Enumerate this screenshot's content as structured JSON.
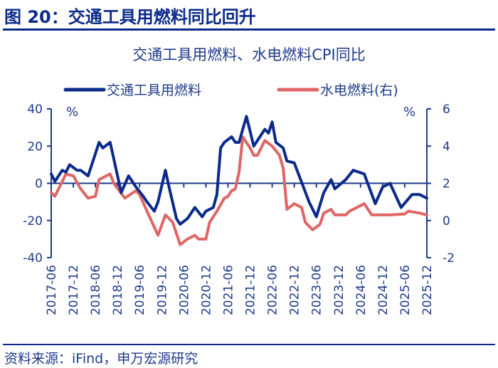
{
  "figure_title": "图 20：交通工具用燃料同比回升",
  "source": "资料来源：iFind，申万宏源研究",
  "chart_data": {
    "type": "line",
    "title": "交通工具用燃料、水电燃料CPI同比",
    "y_unit_left": "%",
    "y_unit_right": "%",
    "ylim_left": [
      -40,
      40
    ],
    "yticks_left": [
      40,
      20,
      0,
      -20,
      -40
    ],
    "ylim_right": [
      -2,
      6
    ],
    "yticks_right": [
      6,
      4,
      2,
      0,
      -2
    ],
    "xlim": [
      "2017-06",
      "2025-12"
    ],
    "xticks": [
      "2017-06",
      "2017-12",
      "2018-06",
      "2018-12",
      "2019-06",
      "2019-12",
      "2020-06",
      "2020-12",
      "2021-06",
      "2021-12",
      "2022-06",
      "2022-12",
      "2023-06",
      "2023-12",
      "2024-06",
      "2024-12",
      "2025-06",
      "2025-12"
    ],
    "grid": false,
    "legend_placement": "top",
    "series": [
      {
        "name": "交通工具用燃料",
        "axis": "left",
        "color": "#0b2a8a",
        "points": [
          [
            "2017-06",
            5
          ],
          [
            "2017-07",
            1
          ],
          [
            "2017-09",
            7
          ],
          [
            "2017-10",
            6
          ],
          [
            "2017-11",
            10
          ],
          [
            "2018-01",
            7
          ],
          [
            "2018-02",
            7
          ],
          [
            "2018-04",
            4
          ],
          [
            "2018-07",
            22
          ],
          [
            "2018-08",
            19
          ],
          [
            "2018-10",
            22
          ],
          [
            "2019-01",
            -5
          ],
          [
            "2019-03",
            4
          ],
          [
            "2019-05",
            -2
          ],
          [
            "2019-07",
            -7
          ],
          [
            "2019-08",
            -10
          ],
          [
            "2019-10",
            -15
          ],
          [
            "2019-11",
            -10
          ],
          [
            "2020-01",
            7
          ],
          [
            "2020-02",
            -2
          ],
          [
            "2020-04",
            -19
          ],
          [
            "2020-05",
            -22
          ],
          [
            "2020-07",
            -19
          ],
          [
            "2020-09",
            -13
          ],
          [
            "2020-11",
            -18
          ],
          [
            "2020-12",
            -15
          ],
          [
            "2021-02",
            -13
          ],
          [
            "2021-03",
            -6
          ],
          [
            "2021-04",
            19
          ],
          [
            "2021-05",
            22
          ],
          [
            "2021-07",
            25
          ],
          [
            "2021-08",
            22
          ],
          [
            "2021-09",
            22
          ],
          [
            "2021-11",
            36
          ],
          [
            "2022-01",
            20
          ],
          [
            "2022-02",
            23
          ],
          [
            "2022-04",
            29
          ],
          [
            "2022-05",
            27
          ],
          [
            "2022-06",
            33
          ],
          [
            "2022-07",
            22
          ],
          [
            "2022-09",
            19
          ],
          [
            "2022-10",
            12
          ],
          [
            "2022-12",
            11
          ],
          [
            "2023-04",
            -10
          ],
          [
            "2023-06",
            -18
          ],
          [
            "2023-08",
            -5
          ],
          [
            "2023-10",
            2
          ],
          [
            "2023-11",
            -3
          ],
          [
            "2024-02",
            2
          ],
          [
            "2024-04",
            7
          ],
          [
            "2024-07",
            5
          ],
          [
            "2024-10",
            -11
          ],
          [
            "2024-12",
            -2
          ],
          [
            "2025-02",
            0
          ],
          [
            "2025-05",
            -13
          ],
          [
            "2025-08",
            -6
          ],
          [
            "2025-10",
            -6
          ],
          [
            "2025-12",
            -8
          ]
        ]
      },
      {
        "name": "水电燃料(右)",
        "axis": "right",
        "color": "#e06666",
        "points": [
          [
            "2017-06",
            1.5
          ],
          [
            "2017-07",
            1.3
          ],
          [
            "2017-10",
            2.5
          ],
          [
            "2017-12",
            2.4
          ],
          [
            "2018-02",
            1.7
          ],
          [
            "2018-04",
            1.2
          ],
          [
            "2018-06",
            1.3
          ],
          [
            "2018-07",
            2.2
          ],
          [
            "2018-10",
            2.5
          ],
          [
            "2018-11",
            2.0
          ],
          [
            "2019-02",
            1.2
          ],
          [
            "2019-05",
            1.6
          ],
          [
            "2019-06",
            1.4
          ],
          [
            "2019-08",
            0.5
          ],
          [
            "2019-11",
            -0.8
          ],
          [
            "2020-01",
            0.3
          ],
          [
            "2020-03",
            -0.1
          ],
          [
            "2020-05",
            -1.3
          ],
          [
            "2020-07",
            -1.0
          ],
          [
            "2020-09",
            -0.8
          ],
          [
            "2020-10",
            -1.0
          ],
          [
            "2020-12",
            -1.0
          ],
          [
            "2021-01",
            -0.1
          ],
          [
            "2021-03",
            0.5
          ],
          [
            "2021-05",
            1.2
          ],
          [
            "2021-06",
            1.3
          ],
          [
            "2021-07",
            1.6
          ],
          [
            "2021-08",
            1.7
          ],
          [
            "2021-09",
            2.6
          ],
          [
            "2021-10",
            4.5
          ],
          [
            "2021-12",
            3.9
          ],
          [
            "2022-01",
            3.5
          ],
          [
            "2022-02",
            3.5
          ],
          [
            "2022-04",
            4.3
          ],
          [
            "2022-06",
            4.0
          ],
          [
            "2022-08",
            3.5
          ],
          [
            "2022-09",
            2.8
          ],
          [
            "2022-10",
            0.6
          ],
          [
            "2022-12",
            0.9
          ],
          [
            "2023-02",
            0.7
          ],
          [
            "2023-03",
            -0.1
          ],
          [
            "2023-05",
            -0.5
          ],
          [
            "2023-07",
            -0.2
          ],
          [
            "2023-08",
            0.4
          ],
          [
            "2023-10",
            0.6
          ],
          [
            "2023-11",
            0.3
          ],
          [
            "2024-02",
            0.3
          ],
          [
            "2024-03",
            0.5
          ],
          [
            "2024-07",
            0.9
          ],
          [
            "2024-09",
            0.3
          ],
          [
            "2024-12",
            0.3
          ],
          [
            "2025-02",
            0.3
          ],
          [
            "2025-06",
            0.35
          ],
          [
            "2025-07",
            0.5
          ],
          [
            "2025-10",
            0.4
          ],
          [
            "2025-12",
            0.3
          ]
        ]
      }
    ]
  }
}
